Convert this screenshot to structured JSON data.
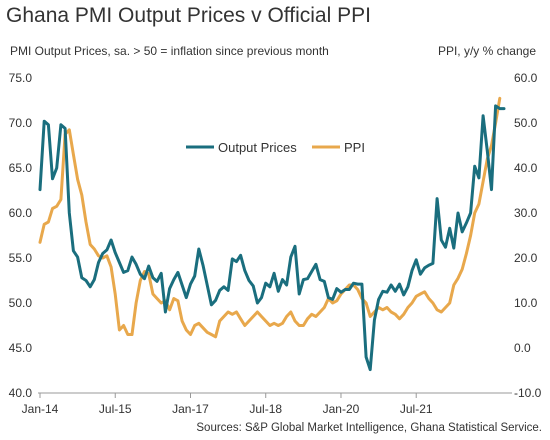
{
  "title": "Ghana PMI Output Prices v Official PPI",
  "source": "Sources: S&P Global Market Intelligence, Ghana Statistical Service.",
  "colors": {
    "output_prices": "#1a6e7e",
    "ppi": "#e8a84c",
    "axis": "#999999",
    "text": "#333333"
  },
  "chart_data": {
    "type": "line",
    "ylabel_left": "PMI Output Prices, sa. > 50 = inflation since previous  month",
    "ylabel_right": "PPI, y/y % change",
    "ylim_left": [
      40,
      75
    ],
    "ylim_right": [
      -10,
      60
    ],
    "yticks_left": [
      "40.0",
      "45.0",
      "50.0",
      "55.0",
      "60.0",
      "65.0",
      "70.0",
      "75.0"
    ],
    "yticks_right": [
      "-10.0",
      "0.0",
      "10.0",
      "20.0",
      "30.0",
      "40.0",
      "50.0",
      "60.0"
    ],
    "xtick_labels": [
      "Jan-14",
      "Jul-15",
      "Jan-17",
      "Jul-18",
      "Jan-20",
      "Jul-21"
    ],
    "x_start": "Jan-14",
    "x_frequency": "monthly",
    "legend": {
      "placement": "center-top"
    },
    "series": [
      {
        "name": "Output Prices",
        "axis": "left",
        "values": [
          62.6,
          70.2,
          69.8,
          63.8,
          65.0,
          69.8,
          69.4,
          60.0,
          55.8,
          55.1,
          52.8,
          52.5,
          51.8,
          52.6,
          54.5,
          55.5,
          55.9,
          57.0,
          55.6,
          54.5,
          53.4,
          53.6,
          55.1,
          54.3,
          53.2,
          52.7,
          54.1,
          52.8,
          52.4,
          53.3,
          49.0,
          51.6,
          52.6,
          53.4,
          52.0,
          50.6,
          52.1,
          53.0,
          56.0,
          54.2,
          52.0,
          49.8,
          50.3,
          51.4,
          51.8,
          51.4,
          54.9,
          54.6,
          55.3,
          53.6,
          52.5,
          51.9,
          50.0,
          50.6,
          52.2,
          51.8,
          53.3,
          51.3,
          52.6,
          52.0,
          55.1,
          56.3,
          51.0,
          52.6,
          52.7,
          53.5,
          54.3,
          52.6,
          52.4,
          50.6,
          50.4,
          51.6,
          51.2,
          51.5,
          51.5,
          52.2,
          52.1,
          52.1,
          44.0,
          42.6,
          48.1,
          50.4,
          51.3,
          51.2,
          52.0,
          51.3,
          52.1,
          50.9,
          51.8,
          53.6,
          54.8,
          53.2,
          53.9,
          54.2,
          54.4,
          61.6,
          57.0,
          56.2,
          58.3,
          56.1,
          60.0,
          57.9,
          58.9,
          60.0,
          65.2,
          63.9,
          70.8,
          66.9,
          62.6,
          71.9,
          71.6,
          71.6
        ]
      },
      {
        "name": "PPI",
        "axis": "right",
        "values": [
          23.5,
          27.5,
          28.0,
          31.0,
          31.5,
          33.0,
          47.5,
          48.5,
          43.0,
          37.5,
          34.0,
          28.0,
          23.0,
          22.0,
          20.5,
          20.0,
          20.5,
          18.0,
          12.0,
          4.0,
          5.0,
          3.0,
          3.0,
          10.0,
          15.0,
          17.0,
          16.5,
          12.0,
          11.0,
          10.0,
          10.5,
          8.5,
          11.0,
          10.5,
          6.0,
          4.0,
          3.0,
          5.0,
          5.5,
          4.5,
          3.5,
          3.0,
          2.5,
          6.0,
          7.0,
          8.0,
          7.5,
          8.0,
          6.5,
          5.0,
          6.0,
          7.0,
          8.0,
          7.0,
          6.0,
          5.0,
          5.5,
          5.0,
          5.5,
          7.0,
          8.0,
          6.0,
          5.0,
          5.0,
          6.5,
          7.5,
          7.0,
          8.0,
          9.0,
          11.0,
          10.0,
          10.5,
          12.0,
          13.0,
          14.0,
          14.0,
          13.0,
          11.0,
          10.0,
          7.0,
          8.0,
          9.0,
          8.5,
          9.0,
          8.0,
          7.5,
          6.5,
          7.5,
          9.0,
          10.0,
          11.5,
          12.0,
          12.5,
          11.0,
          10.0,
          8.5,
          8.0,
          9.0,
          10.0,
          14.0,
          15.5,
          17.5,
          21.0,
          25.0,
          30.0,
          32.0,
          37.0,
          42.0,
          45.0,
          50.0,
          55.5
        ]
      }
    ]
  }
}
